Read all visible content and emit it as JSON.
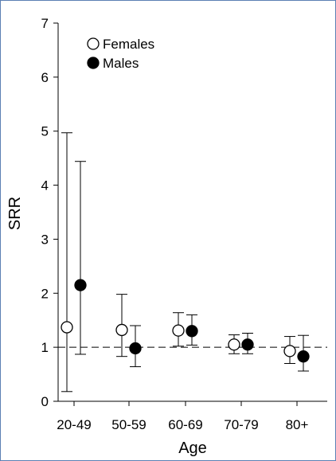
{
  "chart_data": {
    "type": "scatter",
    "title": "",
    "xlabel": "Age",
    "ylabel": "SRR",
    "categories": [
      "20-49",
      "50-59",
      "60-69",
      "70-79",
      "80+"
    ],
    "ylim": [
      0,
      7
    ],
    "yticks": [
      0,
      1,
      2,
      3,
      4,
      5,
      6,
      7
    ],
    "reference_line": {
      "y": 1,
      "style": "dashed"
    },
    "legend_position": "top-left",
    "grid": false,
    "series": [
      {
        "name": "Females",
        "marker": "open-circle",
        "color": "#ffffff",
        "values": [
          1.37,
          1.32,
          1.31,
          1.05,
          0.93
        ],
        "lower": [
          0.18,
          0.83,
          1.02,
          0.88,
          0.7
        ],
        "upper": [
          4.97,
          1.98,
          1.64,
          1.23,
          1.2
        ]
      },
      {
        "name": "Males",
        "marker": "filled-circle",
        "color": "#000000",
        "values": [
          2.15,
          0.98,
          1.3,
          1.05,
          0.83
        ],
        "lower": [
          0.87,
          0.64,
          1.04,
          0.88,
          0.56
        ],
        "upper": [
          4.44,
          1.4,
          1.6,
          1.26,
          1.22
        ]
      }
    ]
  }
}
